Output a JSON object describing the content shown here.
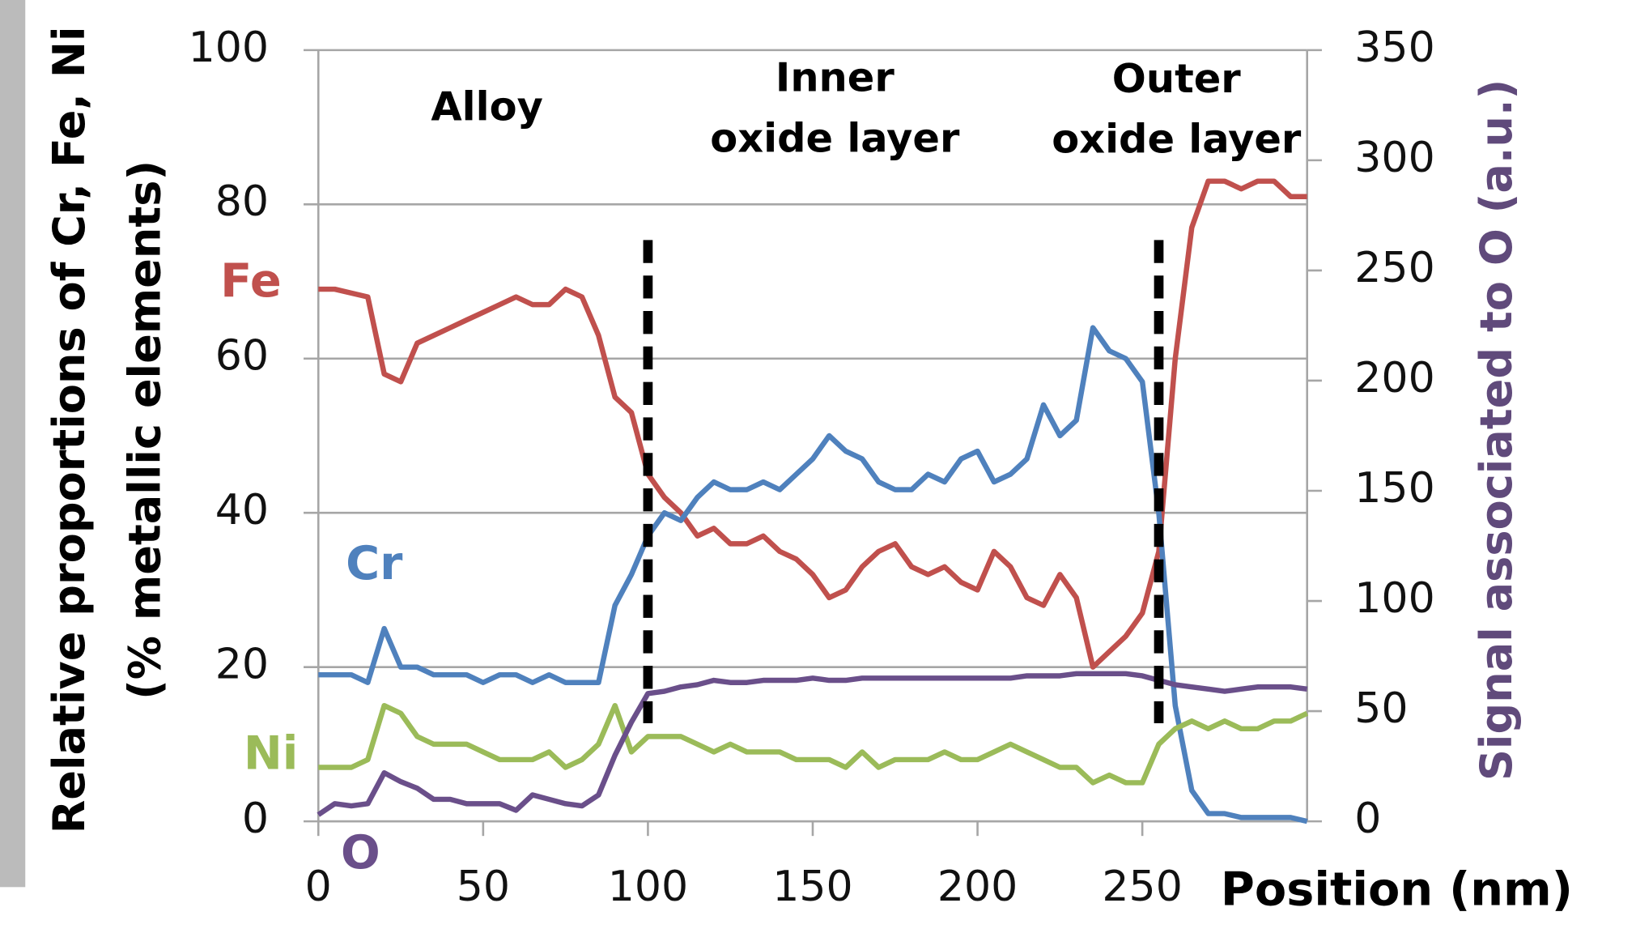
{
  "chart_data": {
    "type": "line",
    "x_label": "Position (nm)",
    "y_label": [
      "Relative proportions of Cr, Fe, Ni",
      "(% metallic elements)"
    ],
    "y2_label": "Signal associated to O (a.u.)",
    "annotations": [
      [
        "Alloy"
      ],
      [
        "Inner",
        "oxide layer"
      ],
      [
        "Outer",
        "oxide layer"
      ]
    ],
    "boundaries": [
      100,
      255
    ],
    "xlim": [
      0,
      300
    ],
    "xticks": [
      0,
      50,
      100,
      150,
      200,
      250
    ],
    "ylim": [
      0,
      100
    ],
    "yticks": [
      0,
      20,
      40,
      60,
      80,
      100
    ],
    "y2lim": [
      0,
      350
    ],
    "y2ticks": [
      0,
      50,
      100,
      150,
      200,
      250,
      300,
      350
    ],
    "grid": true,
    "x": [
      0,
      5,
      10,
      15,
      20,
      25,
      30,
      35,
      40,
      45,
      50,
      55,
      60,
      65,
      70,
      75,
      80,
      85,
      90,
      95,
      100,
      105,
      110,
      115,
      120,
      125,
      130,
      135,
      140,
      145,
      150,
      155,
      160,
      165,
      170,
      175,
      180,
      185,
      190,
      195,
      200,
      205,
      210,
      215,
      220,
      225,
      230,
      235,
      240,
      245,
      250,
      255,
      260,
      265,
      270,
      275,
      280,
      285,
      290,
      295,
      300
    ],
    "series": [
      {
        "name": "Fe",
        "color": "#c0504d",
        "values": [
          69,
          69,
          68.5,
          68,
          58,
          57,
          62,
          63,
          64,
          65,
          66,
          67,
          68,
          67,
          67,
          69,
          68,
          63,
          55,
          53,
          45,
          42,
          40,
          37,
          38,
          36,
          36,
          37,
          35,
          34,
          32,
          29,
          30,
          33,
          35,
          36,
          33,
          32,
          33,
          31,
          30,
          35,
          33,
          29,
          28,
          32,
          29,
          20,
          22,
          24,
          27,
          35,
          60,
          77,
          83,
          83,
          82,
          83,
          83,
          81,
          81
        ]
      },
      {
        "name": "Cr",
        "color": "#4f81bd",
        "values": [
          19,
          19,
          19,
          18,
          25,
          20,
          20,
          19,
          19,
          19,
          18,
          19,
          19,
          18,
          19,
          18,
          18,
          18,
          28,
          32,
          37,
          40,
          39,
          42,
          44,
          43,
          43,
          44,
          43,
          45,
          47,
          50,
          48,
          47,
          44,
          43,
          43,
          45,
          44,
          47,
          48,
          44,
          45,
          47,
          54,
          50,
          52,
          64,
          61,
          60,
          57,
          40,
          15,
          4,
          1,
          1,
          0.5,
          0.5,
          0.5,
          0.5,
          0
        ]
      },
      {
        "name": "Ni",
        "color": "#9bbb59",
        "values": [
          7,
          7,
          7,
          8,
          15,
          14,
          11,
          10,
          10,
          10,
          9,
          8,
          8,
          8,
          9,
          7,
          8,
          10,
          15,
          9,
          11,
          11,
          11,
          10,
          9,
          10,
          9,
          9,
          9,
          8,
          8,
          8,
          7,
          9,
          7,
          8,
          8,
          8,
          9,
          8,
          8,
          9,
          10,
          9,
          8,
          7,
          7,
          5,
          6,
          5,
          5,
          10,
          12,
          13,
          12,
          13,
          12,
          12,
          13,
          13,
          14
        ]
      },
      {
        "name": "O",
        "color": "#6a4f8a",
        "axis": "y2",
        "values": [
          3,
          8,
          7,
          8,
          22,
          18,
          15,
          10,
          10,
          8,
          8,
          8,
          5,
          12,
          10,
          8,
          7,
          12,
          30,
          45,
          58,
          59,
          61,
          62,
          64,
          63,
          63,
          64,
          64,
          64,
          65,
          64,
          64,
          65,
          65,
          65,
          65,
          65,
          65,
          65,
          65,
          65,
          65,
          66,
          66,
          66,
          67,
          67,
          67,
          67,
          66,
          64,
          62,
          61,
          60,
          59,
          60,
          61,
          61,
          61,
          60
        ]
      }
    ]
  }
}
